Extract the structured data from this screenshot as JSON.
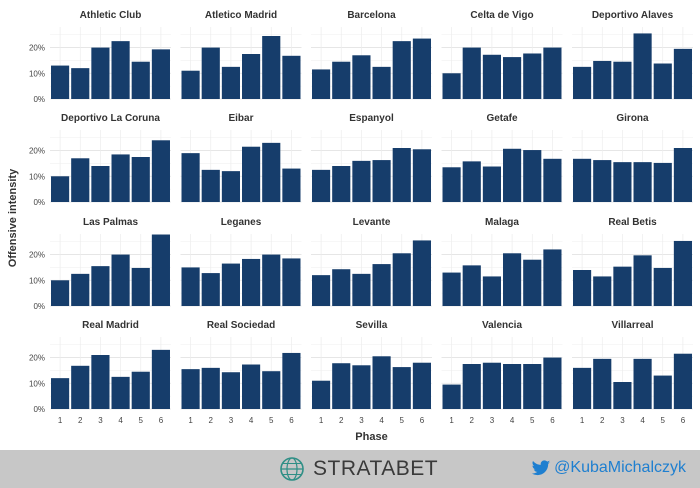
{
  "chart_data": {
    "type": "bar",
    "layout": "faceted-grid",
    "xlabel": "Phase",
    "ylabel": "Offensive intensity",
    "categories": [
      "1",
      "2",
      "3",
      "4",
      "5",
      "6"
    ],
    "ylim": [
      0,
      0.28
    ],
    "yticks": [
      0,
      0.1,
      0.2
    ],
    "ytick_labels": [
      "0%",
      "10%",
      "20%"
    ],
    "grid": true,
    "bar_color": "#163d6b",
    "panels": [
      {
        "name": "Athletic Club",
        "values": [
          0.13,
          0.12,
          0.2,
          0.225,
          0.145,
          0.193
        ]
      },
      {
        "name": "Atletico Madrid",
        "values": [
          0.11,
          0.2,
          0.125,
          0.175,
          0.245,
          0.168
        ]
      },
      {
        "name": "Barcelona",
        "values": [
          0.115,
          0.145,
          0.17,
          0.125,
          0.225,
          0.235
        ]
      },
      {
        "name": "Celta de Vigo",
        "values": [
          0.1,
          0.2,
          0.172,
          0.163,
          0.177,
          0.2
        ]
      },
      {
        "name": "Deportivo Alaves",
        "values": [
          0.125,
          0.148,
          0.145,
          0.255,
          0.138,
          0.195
        ]
      },
      {
        "name": "Deportivo La Coruna",
        "values": [
          0.1,
          0.17,
          0.14,
          0.185,
          0.175,
          0.24
        ]
      },
      {
        "name": "Eibar",
        "values": [
          0.19,
          0.125,
          0.12,
          0.215,
          0.23,
          0.13
        ]
      },
      {
        "name": "Espanyol",
        "values": [
          0.125,
          0.14,
          0.16,
          0.163,
          0.21,
          0.205
        ]
      },
      {
        "name": "Getafe",
        "values": [
          0.135,
          0.158,
          0.138,
          0.207,
          0.202,
          0.168
        ]
      },
      {
        "name": "Girona",
        "values": [
          0.168,
          0.163,
          0.155,
          0.155,
          0.152,
          0.21
        ]
      },
      {
        "name": "Las Palmas",
        "values": [
          0.1,
          0.125,
          0.155,
          0.2,
          0.148,
          0.278
        ]
      },
      {
        "name": "Leganes",
        "values": [
          0.15,
          0.128,
          0.165,
          0.183,
          0.2,
          0.185
        ]
      },
      {
        "name": "Levante",
        "values": [
          0.12,
          0.143,
          0.125,
          0.163,
          0.205,
          0.255
        ]
      },
      {
        "name": "Malaga",
        "values": [
          0.13,
          0.158,
          0.115,
          0.205,
          0.18,
          0.22
        ]
      },
      {
        "name": "Real Betis",
        "values": [
          0.14,
          0.115,
          0.153,
          0.197,
          0.148,
          0.253
        ]
      },
      {
        "name": "Real Madrid",
        "values": [
          0.12,
          0.168,
          0.21,
          0.125,
          0.145,
          0.23
        ]
      },
      {
        "name": "Real Sociedad",
        "values": [
          0.155,
          0.16,
          0.143,
          0.173,
          0.147,
          0.218
        ]
      },
      {
        "name": "Sevilla",
        "values": [
          0.11,
          0.178,
          0.17,
          0.205,
          0.163,
          0.18
        ]
      },
      {
        "name": "Valencia",
        "values": [
          0.095,
          0.175,
          0.18,
          0.175,
          0.175,
          0.2
        ]
      },
      {
        "name": "Villarreal",
        "values": [
          0.16,
          0.195,
          0.105,
          0.195,
          0.13,
          0.215
        ]
      }
    ]
  },
  "footer": {
    "brand": "STRATABET",
    "brand_icon": "globe-icon",
    "twitter_handle": "@KubaMichalczyk",
    "twitter_icon": "twitter-bird-icon",
    "twitter_color": "#1e7fd0"
  }
}
